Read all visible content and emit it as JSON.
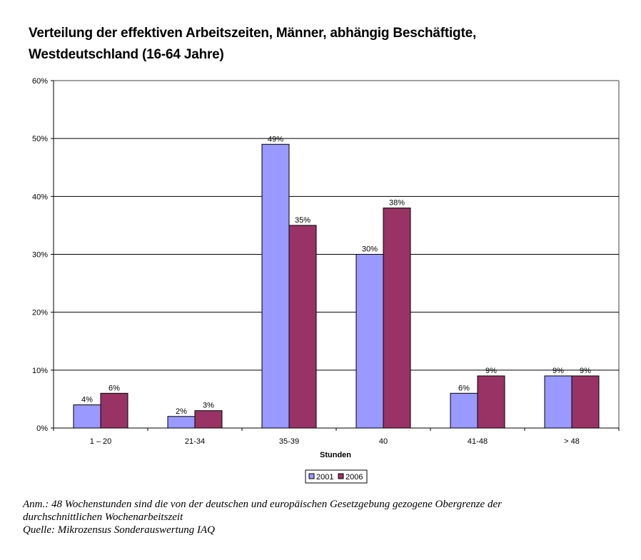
{
  "chart_data": {
    "type": "bar",
    "title_line1": "Verteilung der effektiven Arbeitszeiten, Männer, abhängig Beschäftigte,",
    "title_line2": "Westdeutschland (16-64 Jahre)",
    "categories": [
      "1 – 20",
      "21-34",
      "35-39",
      "40",
      "41-48",
      "> 48"
    ],
    "series": [
      {
        "name": "2001",
        "values": [
          4,
          2,
          49,
          30,
          6,
          9
        ],
        "labels": [
          "4%",
          "2%",
          "49%",
          "30%",
          "6%",
          "9%"
        ],
        "color": "#9999ff"
      },
      {
        "name": "2006",
        "values": [
          6,
          3,
          35,
          38,
          9,
          9
        ],
        "labels": [
          "6%",
          "3%",
          "35%",
          "38%",
          "9%",
          "9%"
        ],
        "color": "#993366"
      }
    ],
    "xlabel": "Stunden",
    "ylabel": "",
    "ylim": [
      0,
      60
    ],
    "yticks": [
      0,
      10,
      20,
      30,
      40,
      50,
      60
    ],
    "ytick_labels": [
      "0%",
      "10%",
      "20%",
      "30%",
      "40%",
      "50%",
      "60%"
    ],
    "grid": true,
    "legend_position": "bottom-center"
  },
  "notes": {
    "line1": "Anm.: 48 Wochenstunden sind die von der deutschen und europäischen Gesetzgebung gezogene Obergrenze der",
    "line2": "durchschnittlichen Wochenarbeitszeit",
    "line3": "Quelle: Mikrozensus Sonderauswertung IAQ"
  }
}
